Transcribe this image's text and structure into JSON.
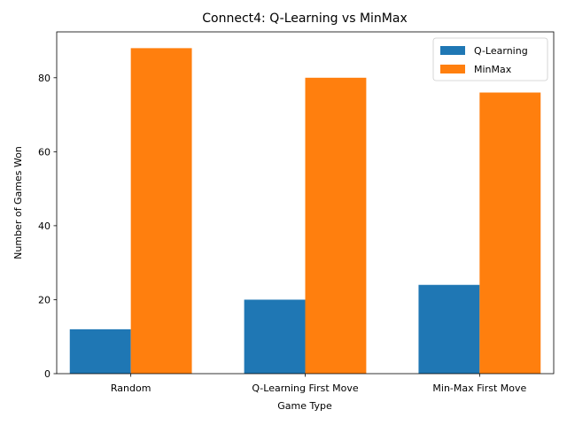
{
  "chart_data": {
    "type": "bar",
    "title": "Connect4: Q-Learning vs MinMax",
    "xlabel": "Game Type",
    "ylabel": "Number of Games Won",
    "categories": [
      "Random",
      "Q-Learning First Move",
      "Min-Max First Move"
    ],
    "series": [
      {
        "name": "Q-Learning",
        "values": [
          12,
          20,
          24
        ],
        "color": "#1f77b4"
      },
      {
        "name": "MinMax",
        "values": [
          88,
          80,
          76
        ],
        "color": "#ff7f0e"
      }
    ],
    "ylim": [
      0,
      92.4
    ],
    "yticks": [
      0,
      20,
      40,
      60,
      80
    ],
    "legend": "top-right",
    "grid": false
  }
}
